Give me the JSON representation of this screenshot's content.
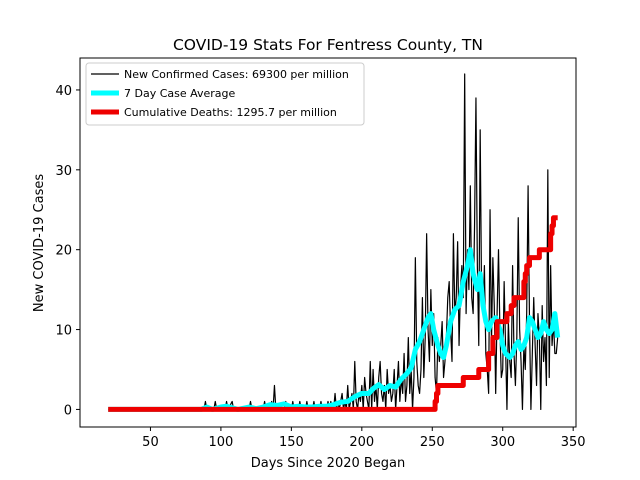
{
  "chart_data": {
    "type": "line",
    "title": "COVID-19 Stats For Fentress County, TN",
    "xlabel": "Days Since 2020 Began",
    "ylabel": "New COVID-19 Cases",
    "xlim": [
      0,
      352
    ],
    "ylim": [
      -2.2,
      44
    ],
    "xticks": [
      50,
      100,
      150,
      200,
      250,
      300,
      350
    ],
    "yticks": [
      0,
      10,
      20,
      30,
      40
    ],
    "grid": false,
    "legend_position": "top-left",
    "colors": {
      "cases": "#000000",
      "average": "#00ffff",
      "deaths": "#ee0000"
    },
    "series": [
      {
        "name": "New Confirmed Cases: 69300 per million",
        "style": "thin-line",
        "points": [
          [
            20,
            0
          ],
          [
            88,
            0
          ],
          [
            89,
            1
          ],
          [
            90,
            0
          ],
          [
            95,
            0
          ],
          [
            96,
            1
          ],
          [
            97,
            0
          ],
          [
            103,
            0
          ],
          [
            104,
            1
          ],
          [
            105,
            0
          ],
          [
            108,
            1
          ],
          [
            109,
            0
          ],
          [
            120,
            0
          ],
          [
            121,
            1
          ],
          [
            122,
            0
          ],
          [
            130,
            0
          ],
          [
            131,
            1
          ],
          [
            132,
            0
          ],
          [
            135,
            0
          ],
          [
            136,
            1
          ],
          [
            137,
            0
          ],
          [
            138,
            3
          ],
          [
            139,
            0
          ],
          [
            145,
            0
          ],
          [
            146,
            1
          ],
          [
            147,
            0
          ],
          [
            150,
            0
          ],
          [
            151,
            1
          ],
          [
            152,
            0
          ],
          [
            155,
            0
          ],
          [
            156,
            1
          ],
          [
            157,
            0
          ],
          [
            160,
            0
          ],
          [
            161,
            1
          ],
          [
            162,
            0
          ],
          [
            165,
            0
          ],
          [
            166,
            1
          ],
          [
            167,
            0
          ],
          [
            170,
            0
          ],
          [
            171,
            1
          ],
          [
            172,
            0
          ],
          [
            175,
            0
          ],
          [
            176,
            1
          ],
          [
            177,
            0
          ],
          [
            178,
            1
          ],
          [
            179,
            0
          ],
          [
            180,
            0
          ],
          [
            181,
            2
          ],
          [
            182,
            0
          ],
          [
            183,
            1
          ],
          [
            184,
            0
          ],
          [
            185,
            1
          ],
          [
            186,
            2
          ],
          [
            187,
            0
          ],
          [
            188,
            1
          ],
          [
            189,
            0
          ],
          [
            190,
            3
          ],
          [
            191,
            0
          ],
          [
            192,
            1
          ],
          [
            193,
            2
          ],
          [
            194,
            0
          ],
          [
            195,
            6
          ],
          [
            196,
            1
          ],
          [
            197,
            0
          ],
          [
            198,
            2
          ],
          [
            199,
            1
          ],
          [
            200,
            3
          ],
          [
            201,
            0
          ],
          [
            202,
            4
          ],
          [
            203,
            2
          ],
          [
            204,
            1
          ],
          [
            205,
            0
          ],
          [
            206,
            6
          ],
          [
            207,
            0
          ],
          [
            208,
            5
          ],
          [
            209,
            1
          ],
          [
            210,
            3
          ],
          [
            211,
            0
          ],
          [
            212,
            4
          ],
          [
            213,
            6
          ],
          [
            214,
            2
          ],
          [
            215,
            1
          ],
          [
            216,
            3
          ],
          [
            217,
            0
          ],
          [
            218,
            5
          ],
          [
            219,
            2
          ],
          [
            220,
            3
          ],
          [
            221,
            1
          ],
          [
            222,
            2
          ],
          [
            223,
            5
          ],
          [
            224,
            0
          ],
          [
            225,
            3
          ],
          [
            226,
            6
          ],
          [
            227,
            1
          ],
          [
            228,
            4
          ],
          [
            229,
            2
          ],
          [
            230,
            7
          ],
          [
            231,
            1
          ],
          [
            232,
            3
          ],
          [
            233,
            9
          ],
          [
            234,
            2
          ],
          [
            235,
            5
          ],
          [
            236,
            0
          ],
          [
            237,
            4
          ],
          [
            238,
            19
          ],
          [
            239,
            6
          ],
          [
            240,
            3
          ],
          [
            241,
            2
          ],
          [
            242,
            5
          ],
          [
            243,
            14
          ],
          [
            244,
            4
          ],
          [
            245,
            9
          ],
          [
            246,
            22
          ],
          [
            247,
            10
          ],
          [
            248,
            6
          ],
          [
            249,
            15
          ],
          [
            250,
            8
          ],
          [
            251,
            12
          ],
          [
            252,
            4
          ],
          [
            253,
            2
          ],
          [
            254,
            9
          ],
          [
            255,
            6
          ],
          [
            256,
            8
          ],
          [
            257,
            11
          ],
          [
            258,
            4
          ],
          [
            259,
            6
          ],
          [
            260,
            9
          ],
          [
            261,
            14
          ],
          [
            262,
            16
          ],
          [
            263,
            10
          ],
          [
            264,
            6
          ],
          [
            265,
            22
          ],
          [
            266,
            12
          ],
          [
            267,
            14
          ],
          [
            268,
            21
          ],
          [
            269,
            8
          ],
          [
            270,
            15
          ],
          [
            271,
            18
          ],
          [
            272,
            14
          ],
          [
            273,
            42
          ],
          [
            274,
            12
          ],
          [
            275,
            20
          ],
          [
            276,
            15
          ],
          [
            277,
            28
          ],
          [
            278,
            14
          ],
          [
            279,
            12
          ],
          [
            280,
            23
          ],
          [
            281,
            39
          ],
          [
            282,
            18
          ],
          [
            283,
            8
          ],
          [
            284,
            35
          ],
          [
            285,
            14
          ],
          [
            286,
            12
          ],
          [
            287,
            18
          ],
          [
            288,
            7
          ],
          [
            289,
            5
          ],
          [
            290,
            2
          ],
          [
            291,
            25
          ],
          [
            292,
            8
          ],
          [
            293,
            19
          ],
          [
            294,
            13
          ],
          [
            295,
            2
          ],
          [
            296,
            12
          ],
          [
            297,
            20
          ],
          [
            298,
            10
          ],
          [
            299,
            4
          ],
          [
            300,
            5
          ],
          [
            301,
            16
          ],
          [
            302,
            8
          ],
          [
            303,
            0
          ],
          [
            304,
            11
          ],
          [
            305,
            6
          ],
          [
            306,
            4
          ],
          [
            307,
            18
          ],
          [
            308,
            7
          ],
          [
            309,
            3
          ],
          [
            310,
            9
          ],
          [
            311,
            24
          ],
          [
            312,
            10
          ],
          [
            313,
            6
          ],
          [
            314,
            0
          ],
          [
            315,
            8
          ],
          [
            316,
            5
          ],
          [
            317,
            12
          ],
          [
            318,
            28
          ],
          [
            319,
            11
          ],
          [
            320,
            0
          ],
          [
            321,
            7
          ],
          [
            322,
            14
          ],
          [
            323,
            8
          ],
          [
            324,
            3
          ],
          [
            325,
            12
          ],
          [
            326,
            9
          ],
          [
            327,
            0
          ],
          [
            328,
            13
          ],
          [
            329,
            6
          ],
          [
            330,
            9
          ],
          [
            331,
            3
          ],
          [
            332,
            30
          ],
          [
            333,
            4
          ],
          [
            334,
            18
          ],
          [
            335,
            8
          ],
          [
            336,
            11
          ],
          [
            337,
            7
          ],
          [
            338,
            7
          ],
          [
            339,
            9
          ]
        ]
      },
      {
        "name": "7 Day Case Average",
        "style": "thick-line",
        "points": [
          [
            20,
            0
          ],
          [
            86,
            0
          ],
          [
            90,
            0.3
          ],
          [
            94,
            0
          ],
          [
            100,
            0.3
          ],
          [
            104,
            0.4
          ],
          [
            108,
            0.2
          ],
          [
            112,
            0
          ],
          [
            120,
            0.3
          ],
          [
            125,
            0.1
          ],
          [
            130,
            0.3
          ],
          [
            135,
            0.6
          ],
          [
            140,
            0.5
          ],
          [
            145,
            0.7
          ],
          [
            150,
            0.3
          ],
          [
            155,
            0.4
          ],
          [
            160,
            0.3
          ],
          [
            165,
            0.3
          ],
          [
            170,
            0.4
          ],
          [
            175,
            0.4
          ],
          [
            180,
            0.6
          ],
          [
            185,
            0.9
          ],
          [
            190,
            1.0
          ],
          [
            195,
            1.6
          ],
          [
            200,
            2.0
          ],
          [
            205,
            2.0
          ],
          [
            208,
            2.6
          ],
          [
            212,
            3.1
          ],
          [
            216,
            2.5
          ],
          [
            220,
            3.0
          ],
          [
            224,
            2.8
          ],
          [
            228,
            3.8
          ],
          [
            232,
            4.5
          ],
          [
            235,
            5.2
          ],
          [
            238,
            7.5
          ],
          [
            241,
            8.5
          ],
          [
            244,
            10
          ],
          [
            247,
            11.5
          ],
          [
            249,
            12
          ],
          [
            251,
            10
          ],
          [
            254,
            8
          ],
          [
            256,
            7
          ],
          [
            258,
            6.5
          ],
          [
            260,
            8
          ],
          [
            263,
            11
          ],
          [
            266,
            12.5
          ],
          [
            269,
            13
          ],
          [
            272,
            16
          ],
          [
            275,
            18
          ],
          [
            277,
            20
          ],
          [
            279,
            17
          ],
          [
            282,
            15
          ],
          [
            284,
            17
          ],
          [
            286,
            13
          ],
          [
            288,
            11
          ],
          [
            290,
            10
          ],
          [
            292,
            11
          ],
          [
            295,
            11.5
          ],
          [
            298,
            10
          ],
          [
            300,
            8
          ],
          [
            302,
            7
          ],
          [
            305,
            6.5
          ],
          [
            307,
            7
          ],
          [
            309,
            8
          ],
          [
            311,
            8.5
          ],
          [
            313,
            7.5
          ],
          [
            315,
            8
          ],
          [
            317,
            9
          ],
          [
            319,
            11.5
          ],
          [
            321,
            11
          ],
          [
            323,
            10
          ],
          [
            325,
            9
          ],
          [
            327,
            9.5
          ],
          [
            329,
            11
          ],
          [
            331,
            10
          ],
          [
            333,
            9.5
          ],
          [
            335,
            10
          ],
          [
            337,
            12
          ],
          [
            339,
            9
          ]
        ]
      },
      {
        "name": "Cumulative Deaths: 1295.7 per million",
        "style": "thick-step",
        "points": [
          [
            20,
            0
          ],
          [
            251,
            0
          ],
          [
            252,
            1
          ],
          [
            253,
            2
          ],
          [
            254,
            3
          ],
          [
            271,
            3
          ],
          [
            272,
            4
          ],
          [
            282,
            4
          ],
          [
            283,
            5
          ],
          [
            289,
            5
          ],
          [
            290,
            7
          ],
          [
            293,
            9
          ],
          [
            296,
            11
          ],
          [
            302,
            11
          ],
          [
            303,
            12
          ],
          [
            306,
            13
          ],
          [
            308,
            14
          ],
          [
            314,
            14
          ],
          [
            315,
            16
          ],
          [
            316,
            17
          ],
          [
            317,
            18
          ],
          [
            319,
            19
          ],
          [
            325,
            19
          ],
          [
            326,
            20
          ],
          [
            333,
            20
          ],
          [
            334,
            22
          ],
          [
            335,
            23
          ],
          [
            336,
            24
          ],
          [
            339,
            24
          ]
        ]
      }
    ]
  }
}
